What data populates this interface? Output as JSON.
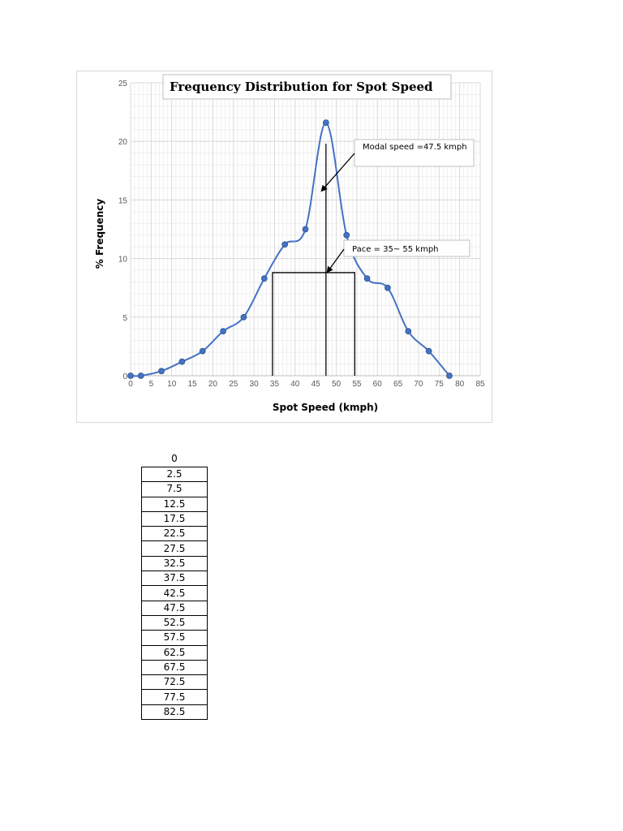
{
  "chart_data": {
    "type": "line",
    "smooth": true,
    "title": "Frequency Distribution for Spot Speed",
    "xlabel": "Spot Speed (kmph)",
    "ylabel": "% Frequency",
    "xlim": [
      0,
      85
    ],
    "ylim": [
      0,
      25
    ],
    "xticks": [
      0,
      5,
      10,
      15,
      20,
      25,
      30,
      35,
      40,
      45,
      50,
      55,
      60,
      65,
      70,
      75,
      80,
      85
    ],
    "yticks": [
      0,
      5,
      10,
      15,
      20,
      25
    ],
    "grid": true,
    "line_color": "#4472c4",
    "series": [
      {
        "x": [
          0,
          2.5,
          7.5,
          12.5,
          17.5,
          22.5,
          27.5,
          32.5,
          37.5,
          42.5,
          47.5,
          52.5,
          57.5,
          62.5,
          67.5,
          72.5,
          77.5
        ],
        "y": [
          0,
          0,
          0.4,
          1.2,
          2.1,
          3.8,
          5.0,
          8.3,
          11.2,
          12.5,
          21.6,
          12.0,
          8.3,
          7.5,
          3.8,
          2.1,
          0
        ]
      }
    ],
    "annotations": [
      {
        "text": "Modal speed =47.5 kmph",
        "at": [
          46.5,
          15.8
        ]
      },
      {
        "text": "Pace = 35~ 55 kmph",
        "at": [
          47.5,
          8.8
        ]
      }
    ],
    "reference_lines": [
      {
        "kind": "vertical",
        "x": 47.5,
        "y_from": 0,
        "y_to": 19.8
      },
      {
        "kind": "box",
        "x_from": 34.5,
        "x_to": 54.5,
        "y_from": 0,
        "y_to": 8.8
      }
    ]
  },
  "table": {
    "header": "0",
    "values": [
      "2.5",
      "7.5",
      "12.5",
      "17.5",
      "22.5",
      "27.5",
      "32.5",
      "37.5",
      "42.5",
      "47.5",
      "52.5",
      "57.5",
      "62.5",
      "67.5",
      "72.5",
      "77.5",
      "82.5"
    ]
  }
}
